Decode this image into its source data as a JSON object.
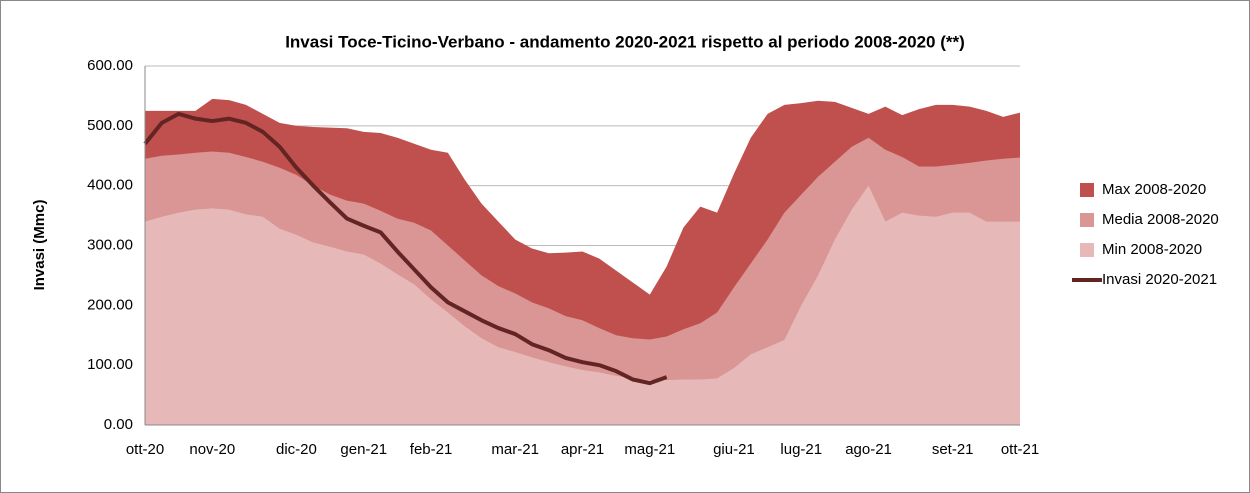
{
  "chart_data": {
    "type": "area",
    "title": "Invasi Toce-Ticino-Verbano - andamento 2020-2021 rispetto al periodo 2008-2020 (**)",
    "ylabel": "Invasi (Mmc)",
    "categories": [
      "ott-20",
      null,
      null,
      null,
      "nov-20",
      null,
      null,
      null,
      null,
      "dic-20",
      null,
      null,
      null,
      "gen-21",
      null,
      null,
      null,
      "feb-21",
      null,
      null,
      null,
      null,
      "mar-21",
      null,
      null,
      null,
      "apr-21",
      null,
      null,
      null,
      "mag-21",
      null,
      null,
      null,
      null,
      "giu-21",
      null,
      null,
      null,
      "lug-21",
      null,
      null,
      null,
      "ago-21",
      null,
      null,
      null,
      null,
      "set-21",
      null,
      null,
      null,
      "ott-21"
    ],
    "ylim": [
      0,
      600
    ],
    "yticks": [
      {
        "value": 0,
        "label": "0.00"
      },
      {
        "value": 100,
        "label": "100.00"
      },
      {
        "value": 200,
        "label": "200.00"
      },
      {
        "value": 300,
        "label": "300.00"
      },
      {
        "value": 400,
        "label": "400.00"
      },
      {
        "value": 500,
        "label": "500.00"
      },
      {
        "value": 600,
        "label": "600.00"
      }
    ],
    "grid": true,
    "legend": "right",
    "series": [
      {
        "name": "Max 2008-2020",
        "color": "#c0504d",
        "kind": "area",
        "values": [
          525,
          525,
          525,
          525,
          545,
          543,
          535,
          520,
          505,
          500,
          498,
          497,
          496,
          490,
          488,
          480,
          470,
          460,
          455,
          410,
          370,
          340,
          310,
          295,
          287,
          288,
          290,
          278,
          258,
          238,
          218,
          265,
          330,
          365,
          355,
          420,
          480,
          520,
          535,
          538,
          542,
          540,
          530,
          520,
          532,
          518,
          528,
          535,
          535,
          532,
          525,
          515,
          522
        ]
      },
      {
        "name": "Media 2008-2020",
        "color": "#d99694",
        "kind": "area",
        "values": [
          445,
          450,
          452,
          455,
          457,
          455,
          448,
          440,
          430,
          418,
          400,
          385,
          375,
          370,
          358,
          345,
          338,
          325,
          300,
          275,
          250,
          232,
          220,
          205,
          195,
          182,
          175,
          162,
          150,
          145,
          143,
          148,
          160,
          170,
          188,
          230,
          270,
          310,
          355,
          385,
          415,
          440,
          465,
          480,
          460,
          448,
          432,
          432,
          435,
          438,
          442,
          445,
          447
        ]
      },
      {
        "name": "Min 2008-2020",
        "color": "#e6b9b8",
        "kind": "area",
        "values": [
          340,
          348,
          355,
          360,
          362,
          360,
          352,
          348,
          328,
          318,
          305,
          298,
          290,
          285,
          270,
          252,
          235,
          210,
          188,
          165,
          145,
          130,
          122,
          113,
          105,
          98,
          92,
          88,
          82,
          78,
          75,
          75,
          76,
          76,
          78,
          95,
          118,
          130,
          142,
          200,
          250,
          310,
          360,
          400,
          340,
          355,
          350,
          348,
          355,
          355,
          340,
          340,
          340
        ]
      },
      {
        "name": "Invasi 2020-2021",
        "color": "#632523",
        "kind": "line",
        "values": [
          470,
          505,
          520,
          512,
          508,
          512,
          505,
          490,
          465,
          430,
          400,
          372,
          345,
          333,
          322,
          290,
          260,
          230,
          205,
          190,
          175,
          162,
          152,
          135,
          125,
          112,
          105,
          100,
          90,
          76,
          70,
          80,
          null,
          null,
          null,
          null,
          null,
          null,
          null,
          null,
          null,
          null,
          null,
          null,
          null,
          null,
          null,
          null,
          null,
          null,
          null,
          null,
          null
        ]
      }
    ]
  }
}
